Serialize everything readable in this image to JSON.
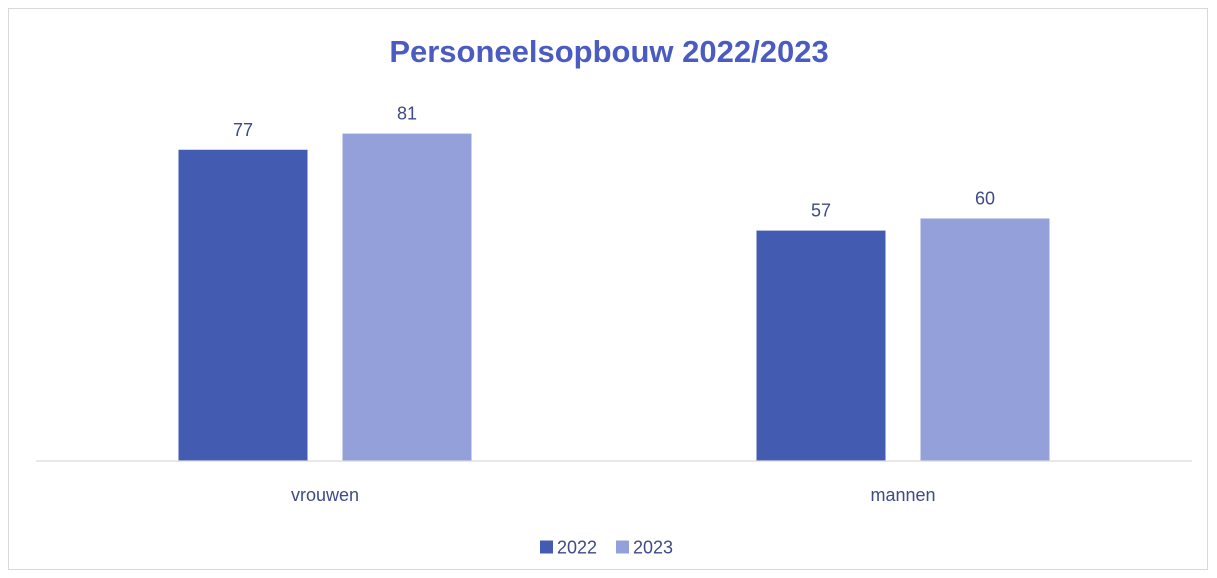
{
  "chart_data": {
    "type": "bar",
    "title": "Personeelsopbouw 2022/2023",
    "categories": [
      "vrouwen",
      "mannen"
    ],
    "series": [
      {
        "name": "2022",
        "values": [
          77,
          57
        ],
        "color": "#435BB0"
      },
      {
        "name": "2023",
        "values": [
          81,
          60
        ],
        "color": "#94A0DA"
      }
    ],
    "ylim": [
      0,
      95
    ],
    "grid": false,
    "y_axis_visible": false,
    "data_labels": true,
    "legend_placement": "bottom"
  },
  "colors": {
    "title": "#4A5BC2",
    "label": "#3F4A87",
    "axis": "#D9D9D9"
  }
}
